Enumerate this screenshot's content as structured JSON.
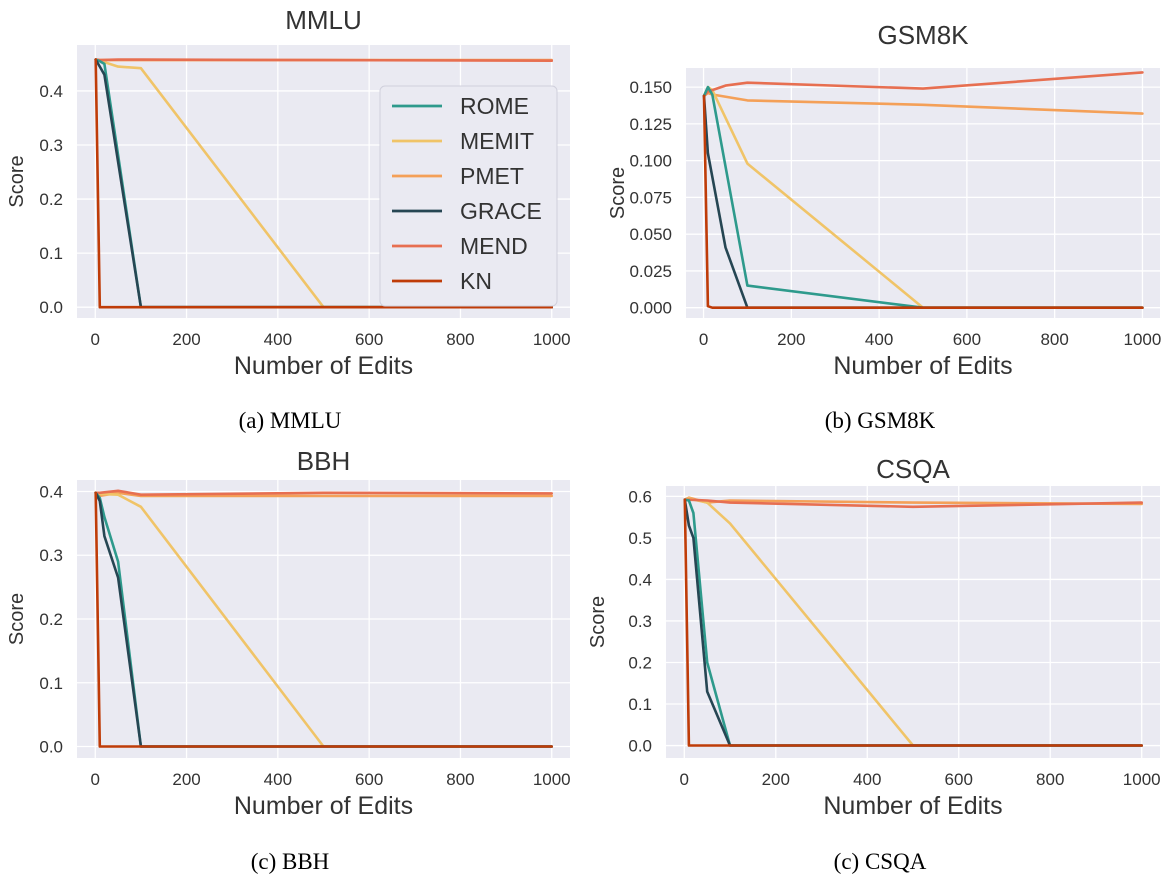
{
  "legend": {
    "entries": [
      {
        "name": "ROME",
        "color": "#2e9a8c"
      },
      {
        "name": "MEMIT",
        "color": "#f0c468"
      },
      {
        "name": "PMET",
        "color": "#f4a058"
      },
      {
        "name": "GRACE",
        "color": "#264653"
      },
      {
        "name": "MEND",
        "color": "#e76f51"
      },
      {
        "name": "KN",
        "color": "#bf3c08"
      }
    ],
    "placement": "upper-right of MMLU panel"
  },
  "style": {
    "plot_background": "#eaeaf2",
    "grid_color": "#ffffff",
    "grid": true
  },
  "chart_data": [
    {
      "type": "line",
      "title": "MMLU",
      "caption": "(a) MMLU",
      "xlabel": "Number of Edits",
      "ylabel": "Score",
      "xlim": [
        -40,
        1040
      ],
      "ylim": [
        -0.02,
        0.485
      ],
      "xticks": [
        0,
        200,
        400,
        600,
        800,
        1000
      ],
      "xtick_labels": [
        "0",
        "200",
        "400",
        "600",
        "800",
        "1000"
      ],
      "yticks": [
        0.0,
        0.1,
        0.2,
        0.3,
        0.4
      ],
      "ytick_labels": [
        "0.0",
        "0.1",
        "0.2",
        "0.3",
        "0.4"
      ],
      "series": [
        {
          "name": "ROME",
          "x": [
            1,
            10,
            20,
            100,
            500,
            1000
          ],
          "y": [
            0.458,
            0.455,
            0.45,
            0.0,
            0.0,
            0.0
          ]
        },
        {
          "name": "MEMIT",
          "x": [
            1,
            10,
            50,
            100,
            500,
            1000
          ],
          "y": [
            0.458,
            0.456,
            0.445,
            0.442,
            0.0,
            0.0
          ]
        },
        {
          "name": "PMET",
          "x": [
            1,
            10,
            50,
            100,
            500,
            1000
          ],
          "y": [
            0.458,
            0.457,
            0.457,
            0.457,
            0.457,
            0.457
          ]
        },
        {
          "name": "GRACE",
          "x": [
            1,
            10,
            20,
            100,
            500,
            1000
          ],
          "y": [
            0.458,
            0.445,
            0.43,
            0.0,
            0.0,
            0.0
          ]
        },
        {
          "name": "MEND",
          "x": [
            1,
            10,
            50,
            100,
            500,
            1000
          ],
          "y": [
            0.458,
            0.457,
            0.458,
            0.458,
            0.457,
            0.456
          ]
        },
        {
          "name": "KN",
          "x": [
            1,
            10,
            50,
            100,
            500,
            1000
          ],
          "y": [
            0.458,
            0.0,
            0.0,
            0.0,
            0.0,
            0.0
          ]
        }
      ]
    },
    {
      "type": "line",
      "title": "GSM8K",
      "caption": "(b) GSM8K",
      "xlabel": "Number of Edits",
      "ylabel": "Score",
      "xlim": [
        -40,
        1040
      ],
      "ylim": [
        -0.007,
        0.163
      ],
      "xticks": [
        0,
        200,
        400,
        600,
        800,
        1000
      ],
      "xtick_labels": [
        "0",
        "200",
        "400",
        "600",
        "800",
        "1000"
      ],
      "yticks": [
        0.0,
        0.025,
        0.05,
        0.075,
        0.1,
        0.125,
        0.15
      ],
      "ytick_labels": [
        "0.000",
        "0.025",
        "0.050",
        "0.075",
        "0.100",
        "0.125",
        "0.150"
      ],
      "series": [
        {
          "name": "ROME",
          "x": [
            1,
            10,
            20,
            100,
            500,
            1000
          ],
          "y": [
            0.144,
            0.15,
            0.145,
            0.015,
            0.0,
            0.0
          ]
        },
        {
          "name": "MEMIT",
          "x": [
            1,
            10,
            20,
            100,
            500,
            1000
          ],
          "y": [
            0.144,
            0.15,
            0.148,
            0.098,
            0.0,
            0.0
          ]
        },
        {
          "name": "PMET",
          "x": [
            1,
            10,
            20,
            100,
            500,
            1000
          ],
          "y": [
            0.144,
            0.146,
            0.145,
            0.141,
            0.138,
            0.132
          ]
        },
        {
          "name": "GRACE",
          "x": [
            1,
            10,
            50,
            100,
            500,
            1000
          ],
          "y": [
            0.144,
            0.105,
            0.041,
            0.0,
            0.0,
            0.0
          ]
        },
        {
          "name": "MEND",
          "x": [
            1,
            10,
            20,
            50,
            100,
            500,
            1000
          ],
          "y": [
            0.144,
            0.147,
            0.148,
            0.151,
            0.153,
            0.149,
            0.16
          ]
        },
        {
          "name": "KN",
          "x": [
            1,
            10,
            20,
            100,
            500,
            1000
          ],
          "y": [
            0.144,
            0.001,
            0.0,
            0.0,
            0.0,
            0.0
          ]
        }
      ]
    },
    {
      "type": "line",
      "title": "BBH",
      "caption": "(c) BBH",
      "xlabel": "Number of Edits",
      "ylabel": "Score",
      "xlim": [
        -40,
        1040
      ],
      "ylim": [
        -0.018,
        0.418
      ],
      "xticks": [
        0,
        200,
        400,
        600,
        800,
        1000
      ],
      "xtick_labels": [
        "0",
        "200",
        "400",
        "600",
        "800",
        "1000"
      ],
      "yticks": [
        0.0,
        0.1,
        0.2,
        0.3,
        0.4
      ],
      "ytick_labels": [
        "0.0",
        "0.1",
        "0.2",
        "0.3",
        "0.4"
      ],
      "series": [
        {
          "name": "ROME",
          "x": [
            1,
            10,
            20,
            50,
            100,
            500,
            1000
          ],
          "y": [
            0.398,
            0.39,
            0.36,
            0.29,
            0.0,
            0.0,
            0.0
          ]
        },
        {
          "name": "MEMIT",
          "x": [
            1,
            10,
            50,
            100,
            500,
            1000
          ],
          "y": [
            0.398,
            0.396,
            0.395,
            0.376,
            0.0,
            0.0
          ]
        },
        {
          "name": "PMET",
          "x": [
            1,
            10,
            50,
            100,
            500,
            1000
          ],
          "y": [
            0.398,
            0.393,
            0.398,
            0.393,
            0.393,
            0.393
          ]
        },
        {
          "name": "GRACE",
          "x": [
            1,
            10,
            20,
            50,
            100,
            500,
            1000
          ],
          "y": [
            0.398,
            0.385,
            0.33,
            0.265,
            0.0,
            0.0,
            0.0
          ]
        },
        {
          "name": "MEND",
          "x": [
            1,
            10,
            50,
            100,
            500,
            1000
          ],
          "y": [
            0.398,
            0.398,
            0.401,
            0.395,
            0.398,
            0.397
          ]
        },
        {
          "name": "KN",
          "x": [
            1,
            10,
            50,
            100,
            500,
            1000
          ],
          "y": [
            0.398,
            0.0,
            0.0,
            0.0,
            0.0,
            0.0
          ]
        }
      ]
    },
    {
      "type": "line",
      "title": "CSQA",
      "caption": "(c) CSQA",
      "xlabel": "Number of Edits",
      "ylabel": "Score",
      "xlim": [
        -40,
        1040
      ],
      "ylim": [
        -0.03,
        0.625
      ],
      "xticks": [
        0,
        200,
        400,
        600,
        800,
        1000
      ],
      "xtick_labels": [
        "0",
        "200",
        "400",
        "600",
        "800",
        "1000"
      ],
      "yticks": [
        0.0,
        0.1,
        0.2,
        0.3,
        0.4,
        0.5,
        0.6
      ],
      "ytick_labels": [
        "0.0",
        "0.1",
        "0.2",
        "0.3",
        "0.4",
        "0.5",
        "0.6"
      ],
      "series": [
        {
          "name": "ROME",
          "x": [
            1,
            10,
            20,
            50,
            100,
            500,
            1000
          ],
          "y": [
            0.592,
            0.59,
            0.56,
            0.2,
            0.0,
            0.0,
            0.0
          ]
        },
        {
          "name": "MEMIT",
          "x": [
            1,
            10,
            50,
            100,
            500,
            1000
          ],
          "y": [
            0.592,
            0.595,
            0.585,
            0.535,
            0.0,
            0.0
          ]
        },
        {
          "name": "PMET",
          "x": [
            1,
            10,
            50,
            100,
            500,
            1000
          ],
          "y": [
            0.592,
            0.597,
            0.585,
            0.59,
            0.585,
            0.582
          ]
        },
        {
          "name": "GRACE",
          "x": [
            1,
            10,
            20,
            50,
            100,
            500,
            1000
          ],
          "y": [
            0.592,
            0.53,
            0.5,
            0.13,
            0.0,
            0.0,
            0.0
          ]
        },
        {
          "name": "MEND",
          "x": [
            1,
            10,
            50,
            100,
            500,
            1000
          ],
          "y": [
            0.592,
            0.592,
            0.59,
            0.585,
            0.575,
            0.585
          ]
        },
        {
          "name": "KN",
          "x": [
            1,
            10,
            50,
            100,
            500,
            1000
          ],
          "y": [
            0.592,
            0.0,
            0.0,
            0.0,
            0.0,
            0.0
          ]
        }
      ]
    }
  ]
}
